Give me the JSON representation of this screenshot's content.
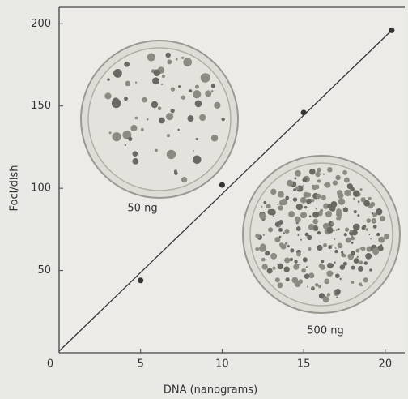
{
  "chart_data": {
    "type": "scatter",
    "x_label": "DNA (nanograms)",
    "y_label": "Foci/dish",
    "x": [
      5,
      10,
      15,
      20.4
    ],
    "values": [
      44,
      102,
      146,
      196
    ],
    "fit_line": {
      "x": [
        0,
        20.4
      ],
      "values": [
        1,
        196
      ]
    },
    "color": "#333333",
    "xlim": [
      0,
      21.2
    ],
    "ylim": [
      0,
      210
    ],
    "xticks": [
      0,
      5,
      10,
      15,
      20
    ],
    "yticks": [
      50,
      100,
      150,
      200
    ],
    "annotations": [
      "50 ng",
      "500 ng"
    ]
  }
}
